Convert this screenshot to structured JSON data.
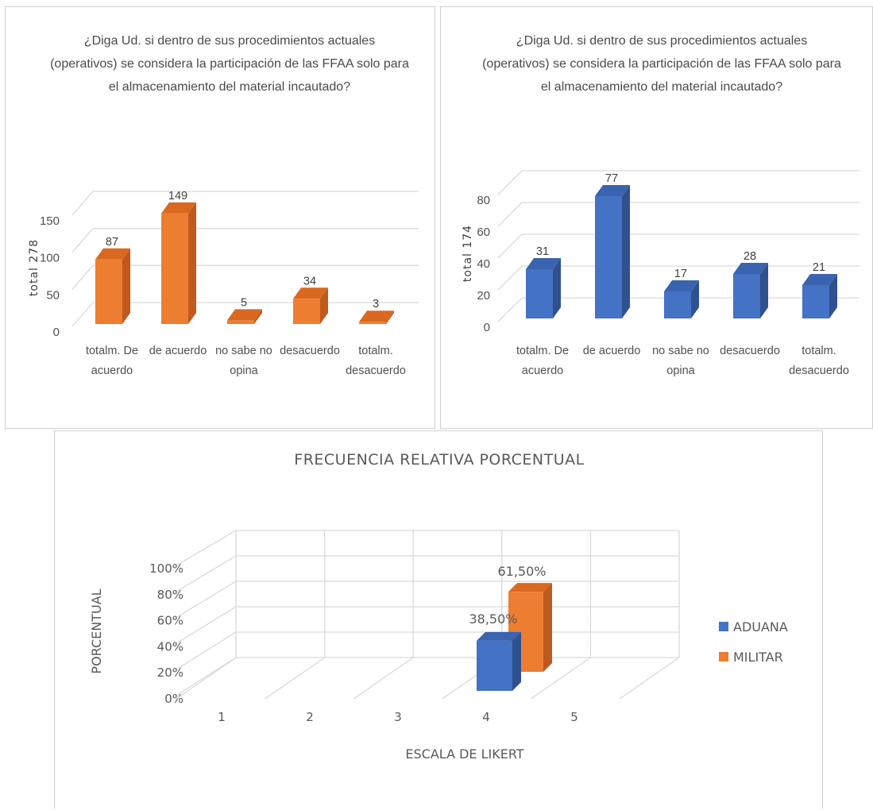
{
  "chart_data": [
    {
      "type": "bar",
      "title_lines": [
        "¿Diga Ud. si dentro de sus procedimientos actuales",
        "(operativos) se considera la participación de las FFAA solo para",
        "el almacenamiento del material incautado?"
      ],
      "ylabel": "total 278",
      "categories": [
        [
          "totalm. De",
          "acuerdo"
        ],
        [
          "de acuerdo"
        ],
        [
          "no sabe no",
          "opina"
        ],
        [
          "desacuerdo"
        ],
        [
          "totalm.",
          "desacuerdo"
        ]
      ],
      "values": [
        87,
        149,
        5,
        34,
        3
      ],
      "data_labels": [
        "87",
        "149",
        "5",
        "34",
        "3"
      ],
      "yticks": [
        0,
        50,
        100,
        150
      ],
      "ylim": [
        0,
        150
      ],
      "bar_color": "#ED7D31",
      "bar_side_color": "#C0591C",
      "bar_top_color": "#D9691F"
    },
    {
      "type": "bar",
      "title_lines": [
        "¿Diga Ud. si dentro de sus procedimientos actuales",
        "(operativos) se considera la participación de las FFAA solo para",
        "el almacenamiento del material incautado?"
      ],
      "ylabel": "total 174",
      "categories": [
        [
          "totalm. De",
          "acuerdo"
        ],
        [
          "de acuerdo"
        ],
        [
          "no sabe no",
          "opina"
        ],
        [
          "desacuerdo"
        ],
        [
          "totalm.",
          "desacuerdo"
        ]
      ],
      "values": [
        31,
        77,
        17,
        28,
        21
      ],
      "data_labels": [
        "31",
        "77",
        "17",
        "28",
        "21"
      ],
      "yticks": [
        0,
        20,
        40,
        60,
        80
      ],
      "ylim": [
        0,
        80
      ],
      "bar_color": "#4472C4",
      "bar_side_color": "#2F528F",
      "bar_top_color": "#3A64B0"
    },
    {
      "type": "bar",
      "title": "FRECUENCIA RELATIVA PORCENTUAL",
      "xlabel": "ESCALA DE LIKERT",
      "ylabel": "PORCENTUAL",
      "categories": [
        "1",
        "2",
        "3",
        "4",
        "5"
      ],
      "yticks": [
        "0%",
        "20%",
        "40%",
        "60%",
        "80%",
        "100%"
      ],
      "ylim": [
        0,
        100
      ],
      "series": [
        {
          "name": "ADUANA",
          "color": "#4472C4",
          "side_color": "#2F528F",
          "top_color": "#3A64B0",
          "category": "4",
          "value": 38.5,
          "label": "38,50%"
        },
        {
          "name": "MILITAR",
          "color": "#ED7D31",
          "side_color": "#C0591C",
          "top_color": "#D9691F",
          "category": "4",
          "value": 61.5,
          "label": "61,50%"
        }
      ],
      "legend_position": "right"
    }
  ]
}
